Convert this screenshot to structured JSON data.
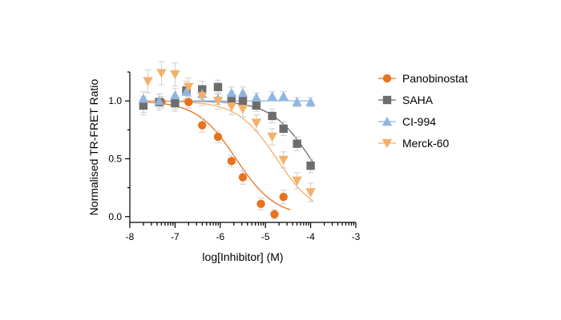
{
  "chart_data": {
    "type": "scatter",
    "title": "",
    "xlabel": "log[Inhibitor] (M)",
    "ylabel": "Normalised TR-FRET Ratio",
    "xlim": [
      -8,
      -3
    ],
    "ylim": [
      -0.05,
      1.25
    ],
    "x_ticks": [
      "-8",
      "-7",
      "-6",
      "-5",
      "-4",
      "-3"
    ],
    "y_ticks": [
      "0.0",
      "0.5",
      "1.0"
    ],
    "legend_position": "right",
    "grid": false,
    "series": [
      {
        "name": "Panobinostat",
        "color": "#E8731E",
        "marker": "circle",
        "x": [
          -7.7,
          -7.3,
          -7.0,
          -6.7,
          -6.4,
          -6.05,
          -5.75,
          -5.5,
          -5.1,
          -4.8,
          -4.6
        ],
        "y": [
          0.96,
          0.99,
          0.99,
          0.99,
          0.79,
          0.69,
          0.48,
          0.34,
          0.11,
          0.02,
          0.17
        ],
        "err": [
          0.06,
          0.05,
          0.06,
          0.05,
          0.06,
          0.05,
          0.05,
          0.06,
          0.05,
          0.04,
          0.06
        ],
        "fit": {
          "top": 1.0,
          "bottom": 0.0,
          "log_ic50": -5.65,
          "hill": 1.0
        }
      },
      {
        "name": "SAHA",
        "color": "#6D6D6D",
        "marker": "square",
        "x": [
          -7.7,
          -7.35,
          -7.0,
          -6.75,
          -6.4,
          -6.05,
          -5.75,
          -5.5,
          -5.2,
          -4.85,
          -4.6,
          -4.3,
          -4.0
        ],
        "y": [
          0.96,
          0.99,
          0.98,
          1.09,
          1.1,
          1.12,
          1.02,
          1.0,
          0.96,
          0.87,
          0.76,
          0.63,
          0.44
        ],
        "err": [
          0.08,
          0.07,
          0.07,
          0.08,
          0.07,
          0.06,
          0.06,
          0.05,
          0.05,
          0.06,
          0.06,
          0.06,
          0.06
        ],
        "fit": {
          "top": 1.0,
          "bottom": 0.0,
          "log_ic50": -4.0,
          "hill": 1.0
        }
      },
      {
        "name": "CI-994",
        "color": "#8FB5E1",
        "marker": "triangle-up",
        "x": [
          -7.7,
          -7.35,
          -7.0,
          -6.75,
          -6.4,
          -6.05,
          -5.75,
          -5.5,
          -5.2,
          -4.85,
          -4.6,
          -4.3,
          -4.0
        ],
        "y": [
          1.02,
          1.0,
          1.05,
          1.08,
          1.06,
          1.02,
          1.07,
          1.07,
          1.03,
          1.04,
          1.04,
          0.99,
          0.99
        ],
        "err": [
          0.06,
          0.06,
          0.06,
          0.06,
          0.05,
          0.05,
          0.05,
          0.05,
          0.04,
          0.04,
          0.04,
          0.04,
          0.04
        ],
        "fit": {
          "flat": 1.0
        }
      },
      {
        "name": "Merck-60",
        "color": "#F4B069",
        "marker": "triangle-down",
        "x": [
          -7.6,
          -7.3,
          -7.0,
          -6.7,
          -6.4,
          -6.05,
          -5.75,
          -5.5,
          -5.2,
          -4.85,
          -4.6,
          -4.3,
          -4.0
        ],
        "y": [
          1.17,
          1.24,
          1.23,
          1.12,
          1.04,
          1.0,
          0.95,
          0.93,
          0.81,
          0.69,
          0.49,
          0.31,
          0.21
        ],
        "err": [
          0.1,
          0.1,
          0.1,
          0.08,
          0.08,
          0.07,
          0.07,
          0.07,
          0.07,
          0.07,
          0.07,
          0.07,
          0.08
        ],
        "fit": {
          "top": 1.0,
          "bottom": 0.0,
          "log_ic50": -4.75,
          "hill": 1.0
        }
      }
    ]
  }
}
